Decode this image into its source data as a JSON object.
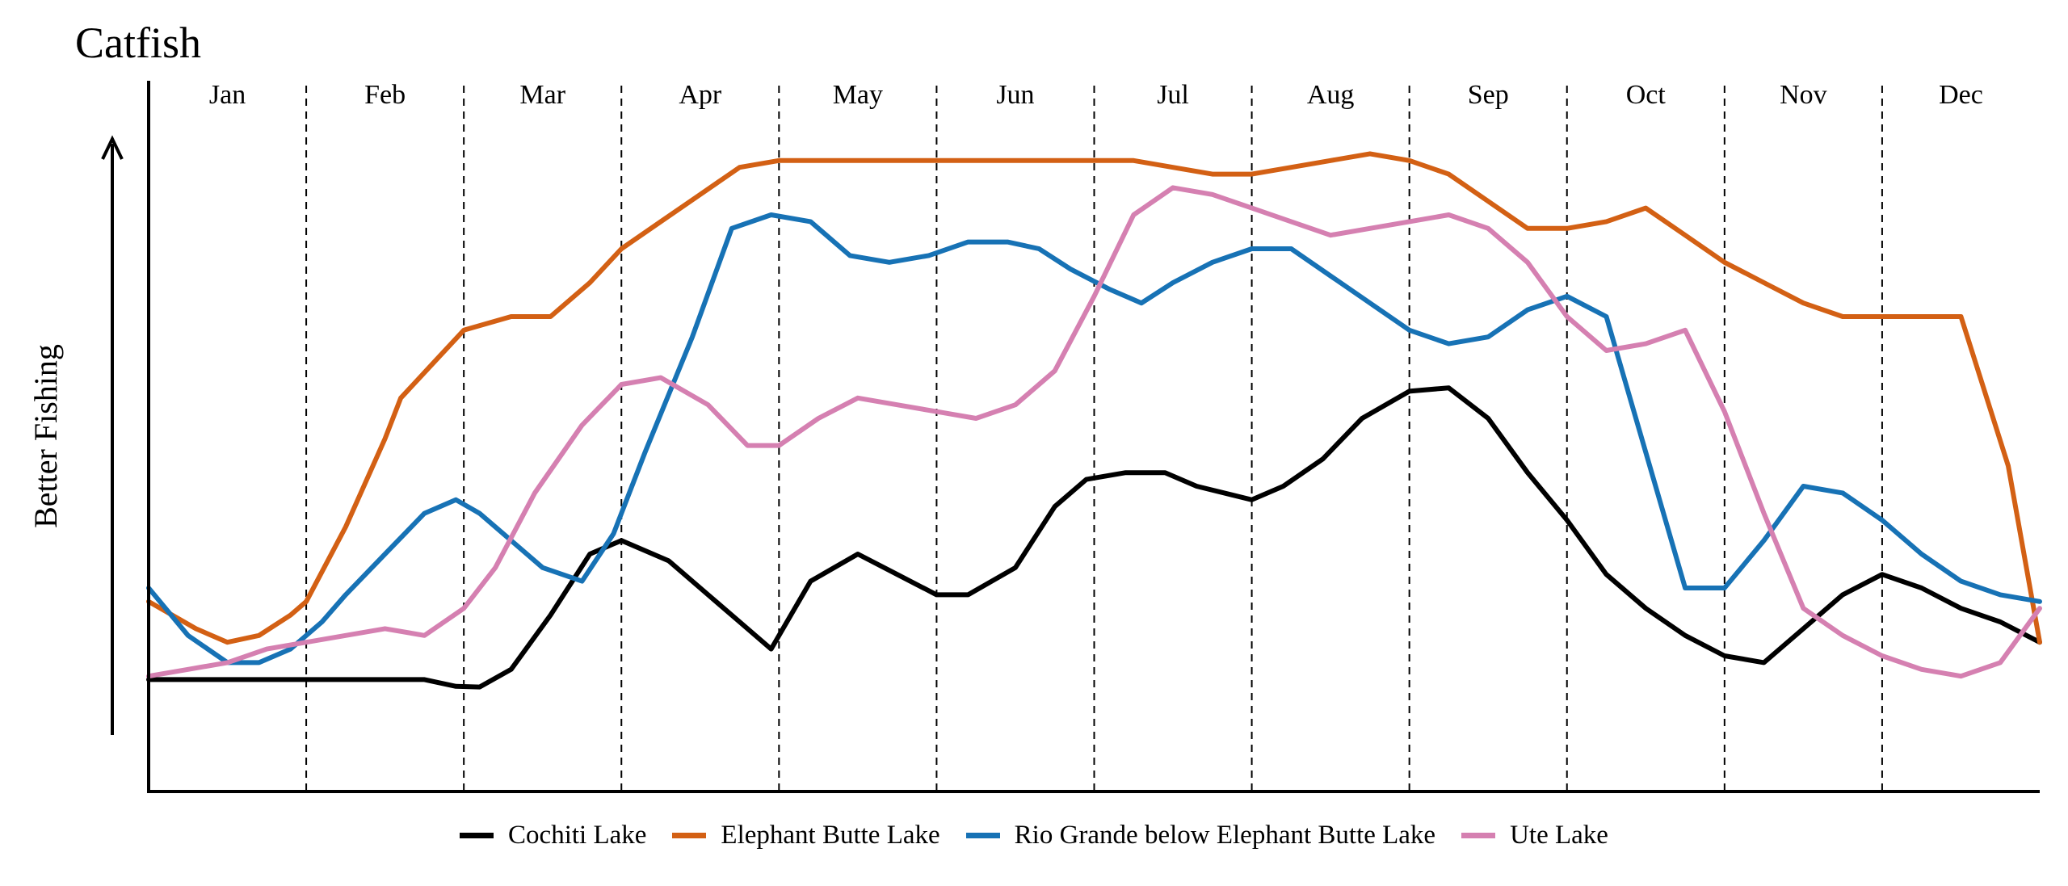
{
  "chart_data": {
    "type": "line",
    "title": "Catfish",
    "xlabel": "",
    "ylabel": "Better Fishing",
    "x_domain": [
      0,
      12
    ],
    "ylim": [
      0,
      100
    ],
    "grid": "vertical dashed month separators",
    "legend_position": "bottom-center",
    "months": [
      "Jan",
      "Feb",
      "Mar",
      "Apr",
      "May",
      "Jun",
      "Jul",
      "Aug",
      "Sep",
      "Oct",
      "Nov",
      "Dec"
    ],
    "series": [
      {
        "name": "Cochiti Lake",
        "color": "#000000",
        "x": [
          0,
          0.5,
          1,
          1.5,
          1.75,
          1.95,
          2.1,
          2.3,
          2.55,
          2.8,
          3,
          3.3,
          3.55,
          3.75,
          3.95,
          4.2,
          4.5,
          4.75,
          5,
          5.2,
          5.5,
          5.75,
          5.95,
          6.2,
          6.45,
          6.65,
          7,
          7.2,
          7.45,
          7.7,
          8,
          8.25,
          8.5,
          8.75,
          9,
          9.25,
          9.5,
          9.75,
          10,
          10.25,
          10.5,
          10.75,
          11,
          11.25,
          11.5,
          11.75,
          12
        ],
        "values": [
          16.5,
          16.5,
          16.5,
          16.5,
          16.5,
          15.5,
          15.4,
          18,
          26,
          35,
          37,
          34,
          29,
          25,
          21,
          31,
          35,
          32,
          29,
          29,
          33,
          42,
          46,
          47,
          47,
          45,
          43,
          45,
          49,
          55,
          59,
          59.5,
          55,
          47,
          40,
          32,
          27,
          23,
          20,
          19,
          24,
          29,
          32,
          30,
          27,
          25,
          22
        ]
      },
      {
        "name": "Elephant Butte Lake",
        "color": "#d36014",
        "x": [
          0,
          0.3,
          0.5,
          0.7,
          0.9,
          1,
          1.25,
          1.5,
          1.6,
          1.8,
          2,
          2.3,
          2.55,
          2.8,
          3,
          3.25,
          3.5,
          3.75,
          4,
          4.25,
          4.5,
          4.75,
          5,
          5.25,
          5.5,
          5.75,
          6,
          6.25,
          6.5,
          6.75,
          7,
          7.25,
          7.5,
          7.75,
          8,
          8.25,
          8.5,
          8.75,
          9,
          9.25,
          9.5,
          9.75,
          10,
          10.25,
          10.5,
          10.75,
          11,
          11.25,
          11.5,
          11.8,
          12
        ],
        "values": [
          28,
          24,
          22,
          23,
          26,
          28,
          39,
          52,
          58,
          63,
          68,
          70,
          70,
          75,
          80,
          84,
          88,
          92,
          93,
          93,
          93,
          93,
          93,
          93,
          93,
          93,
          93,
          93,
          92,
          91,
          91,
          92,
          93,
          94,
          93,
          91,
          87,
          83,
          83,
          84,
          86,
          82,
          78,
          75,
          72,
          70,
          70,
          70,
          70,
          48,
          22
        ]
      },
      {
        "name": "Rio Grande below Elephant Butte Lake",
        "color": "#1772b5",
        "x": [
          0,
          0.25,
          0.5,
          0.7,
          0.9,
          1.1,
          1.25,
          1.5,
          1.75,
          1.95,
          2.1,
          2.3,
          2.5,
          2.75,
          2.95,
          3.15,
          3.45,
          3.7,
          3.95,
          4.2,
          4.45,
          4.7,
          4.95,
          5.2,
          5.45,
          5.65,
          5.85,
          6.1,
          6.3,
          6.5,
          6.75,
          7,
          7.25,
          7.5,
          7.75,
          8,
          8.25,
          8.5,
          8.75,
          9,
          9.25,
          9.5,
          9.75,
          10,
          10.25,
          10.5,
          10.75,
          11,
          11.25,
          11.5,
          11.75,
          12
        ],
        "values": [
          30,
          23,
          19,
          19,
          21,
          25,
          29,
          35,
          41,
          43,
          41,
          37,
          33,
          31,
          38,
          50,
          67,
          83,
          85,
          84,
          79,
          78,
          79,
          81,
          81,
          80,
          77,
          74,
          72,
          75,
          78,
          80,
          80,
          76,
          72,
          68,
          66,
          67,
          71,
          73,
          70,
          50,
          30,
          30,
          37,
          45,
          44,
          40,
          35,
          31,
          29,
          28
        ]
      },
      {
        "name": "Ute Lake",
        "color": "#d580b1",
        "x": [
          0,
          0.25,
          0.5,
          0.75,
          1,
          1.25,
          1.5,
          1.75,
          2,
          2.2,
          2.45,
          2.75,
          3,
          3.25,
          3.55,
          3.8,
          4,
          4.25,
          4.5,
          4.75,
          5,
          5.25,
          5.5,
          5.75,
          6,
          6.25,
          6.5,
          6.75,
          7,
          7.25,
          7.5,
          7.75,
          8,
          8.25,
          8.5,
          8.75,
          9,
          9.25,
          9.5,
          9.75,
          10,
          10.25,
          10.5,
          10.75,
          11,
          11.25,
          11.5,
          11.75,
          12
        ],
        "values": [
          17,
          18,
          19,
          21,
          22,
          23,
          24,
          23,
          27,
          33,
          44,
          54,
          60,
          61,
          57,
          51,
          51,
          55,
          58,
          57,
          56,
          55,
          57,
          62,
          73,
          85,
          89,
          88,
          86,
          84,
          82,
          83,
          84,
          85,
          83,
          78,
          70,
          65,
          66,
          68,
          56,
          41,
          27,
          23,
          20,
          18,
          17,
          19,
          27
        ]
      }
    ]
  }
}
